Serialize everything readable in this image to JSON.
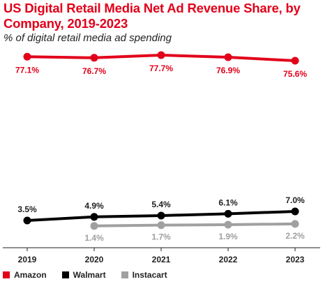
{
  "header": {
    "title": "US Digital Retail Media Net Ad Revenue Share, by Company, 2019-2023",
    "subtitle": "% of digital retail media ad spending"
  },
  "colors": {
    "amazon": "#e2001a",
    "walmart": "#000000",
    "instacart": "#a0a0a0"
  },
  "chart_data": {
    "type": "line",
    "title": "US Digital Retail Media Net Ad Revenue Share, by Company, 2019-2023",
    "subtitle": "% of digital retail media ad spending",
    "categories": [
      "2019",
      "2020",
      "2021",
      "2022",
      "2023"
    ],
    "legend_position": "bottom-left",
    "grid": false,
    "ylim": [
      0,
      80
    ],
    "series": [
      {
        "name": "Amazon",
        "color": "#e2001a",
        "values": [
          77.1,
          76.7,
          77.7,
          76.9,
          75.6
        ],
        "labels": [
          "77.1%",
          "76.7%",
          "77.7%",
          "76.9%",
          "75.6%"
        ]
      },
      {
        "name": "Walmart",
        "color": "#000000",
        "values": [
          3.5,
          4.9,
          5.4,
          6.1,
          7.0
        ],
        "labels": [
          "3.5%",
          "4.9%",
          "5.4%",
          "6.1%",
          "7.0%"
        ]
      },
      {
        "name": "Instacart",
        "color": "#a0a0a0",
        "values": [
          null,
          1.4,
          1.7,
          1.9,
          2.2
        ],
        "labels": [
          "",
          "1.4%",
          "1.7%",
          "1.9%",
          "2.2%"
        ]
      }
    ]
  }
}
